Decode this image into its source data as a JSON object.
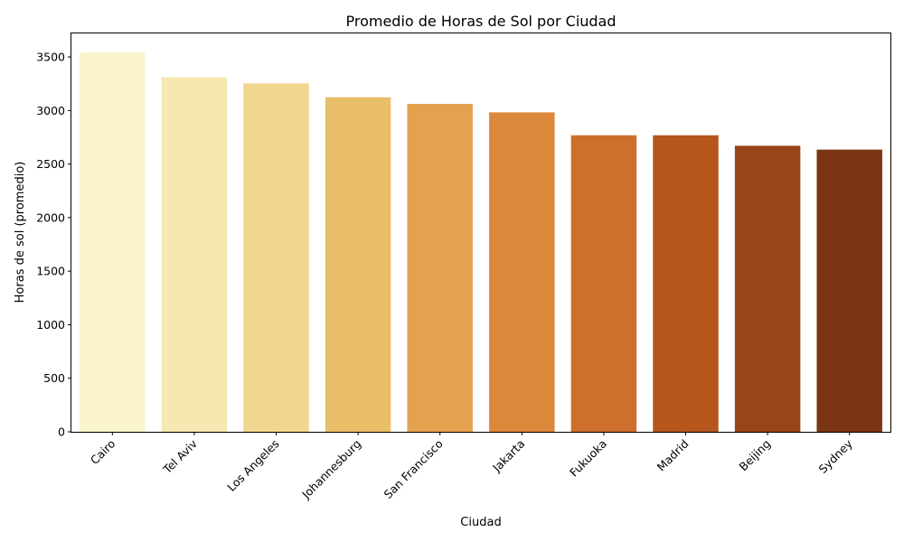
{
  "chart_data": {
    "type": "bar",
    "title": "Promedio de Horas de Sol por Ciudad",
    "xlabel": "Ciudad",
    "ylabel": "Horas de sol (promedio)",
    "ylim": [
      0,
      3720
    ],
    "yticks": [
      0,
      500,
      1000,
      1500,
      2000,
      2500,
      3000,
      3500
    ],
    "grid": false,
    "categories": [
      "Cairo",
      "Tel Aviv",
      "Los Angeles",
      "Johannesburg",
      "San Francisco",
      "Jakarta",
      "Fukuoka",
      "Madrid",
      "Beijing",
      "Sydney"
    ],
    "values": [
      3542,
      3311,
      3254,
      3124,
      3062,
      2983,
      2769,
      2769,
      2671,
      2635
    ],
    "colors": [
      "#f9f4cb",
      "#f5e8b0",
      "#f0d68e",
      "#e9be69",
      "#e5a24e",
      "#dc883a",
      "#cd6f2d",
      "#b5561d",
      "#9a4419",
      "#7b3515"
    ]
  }
}
